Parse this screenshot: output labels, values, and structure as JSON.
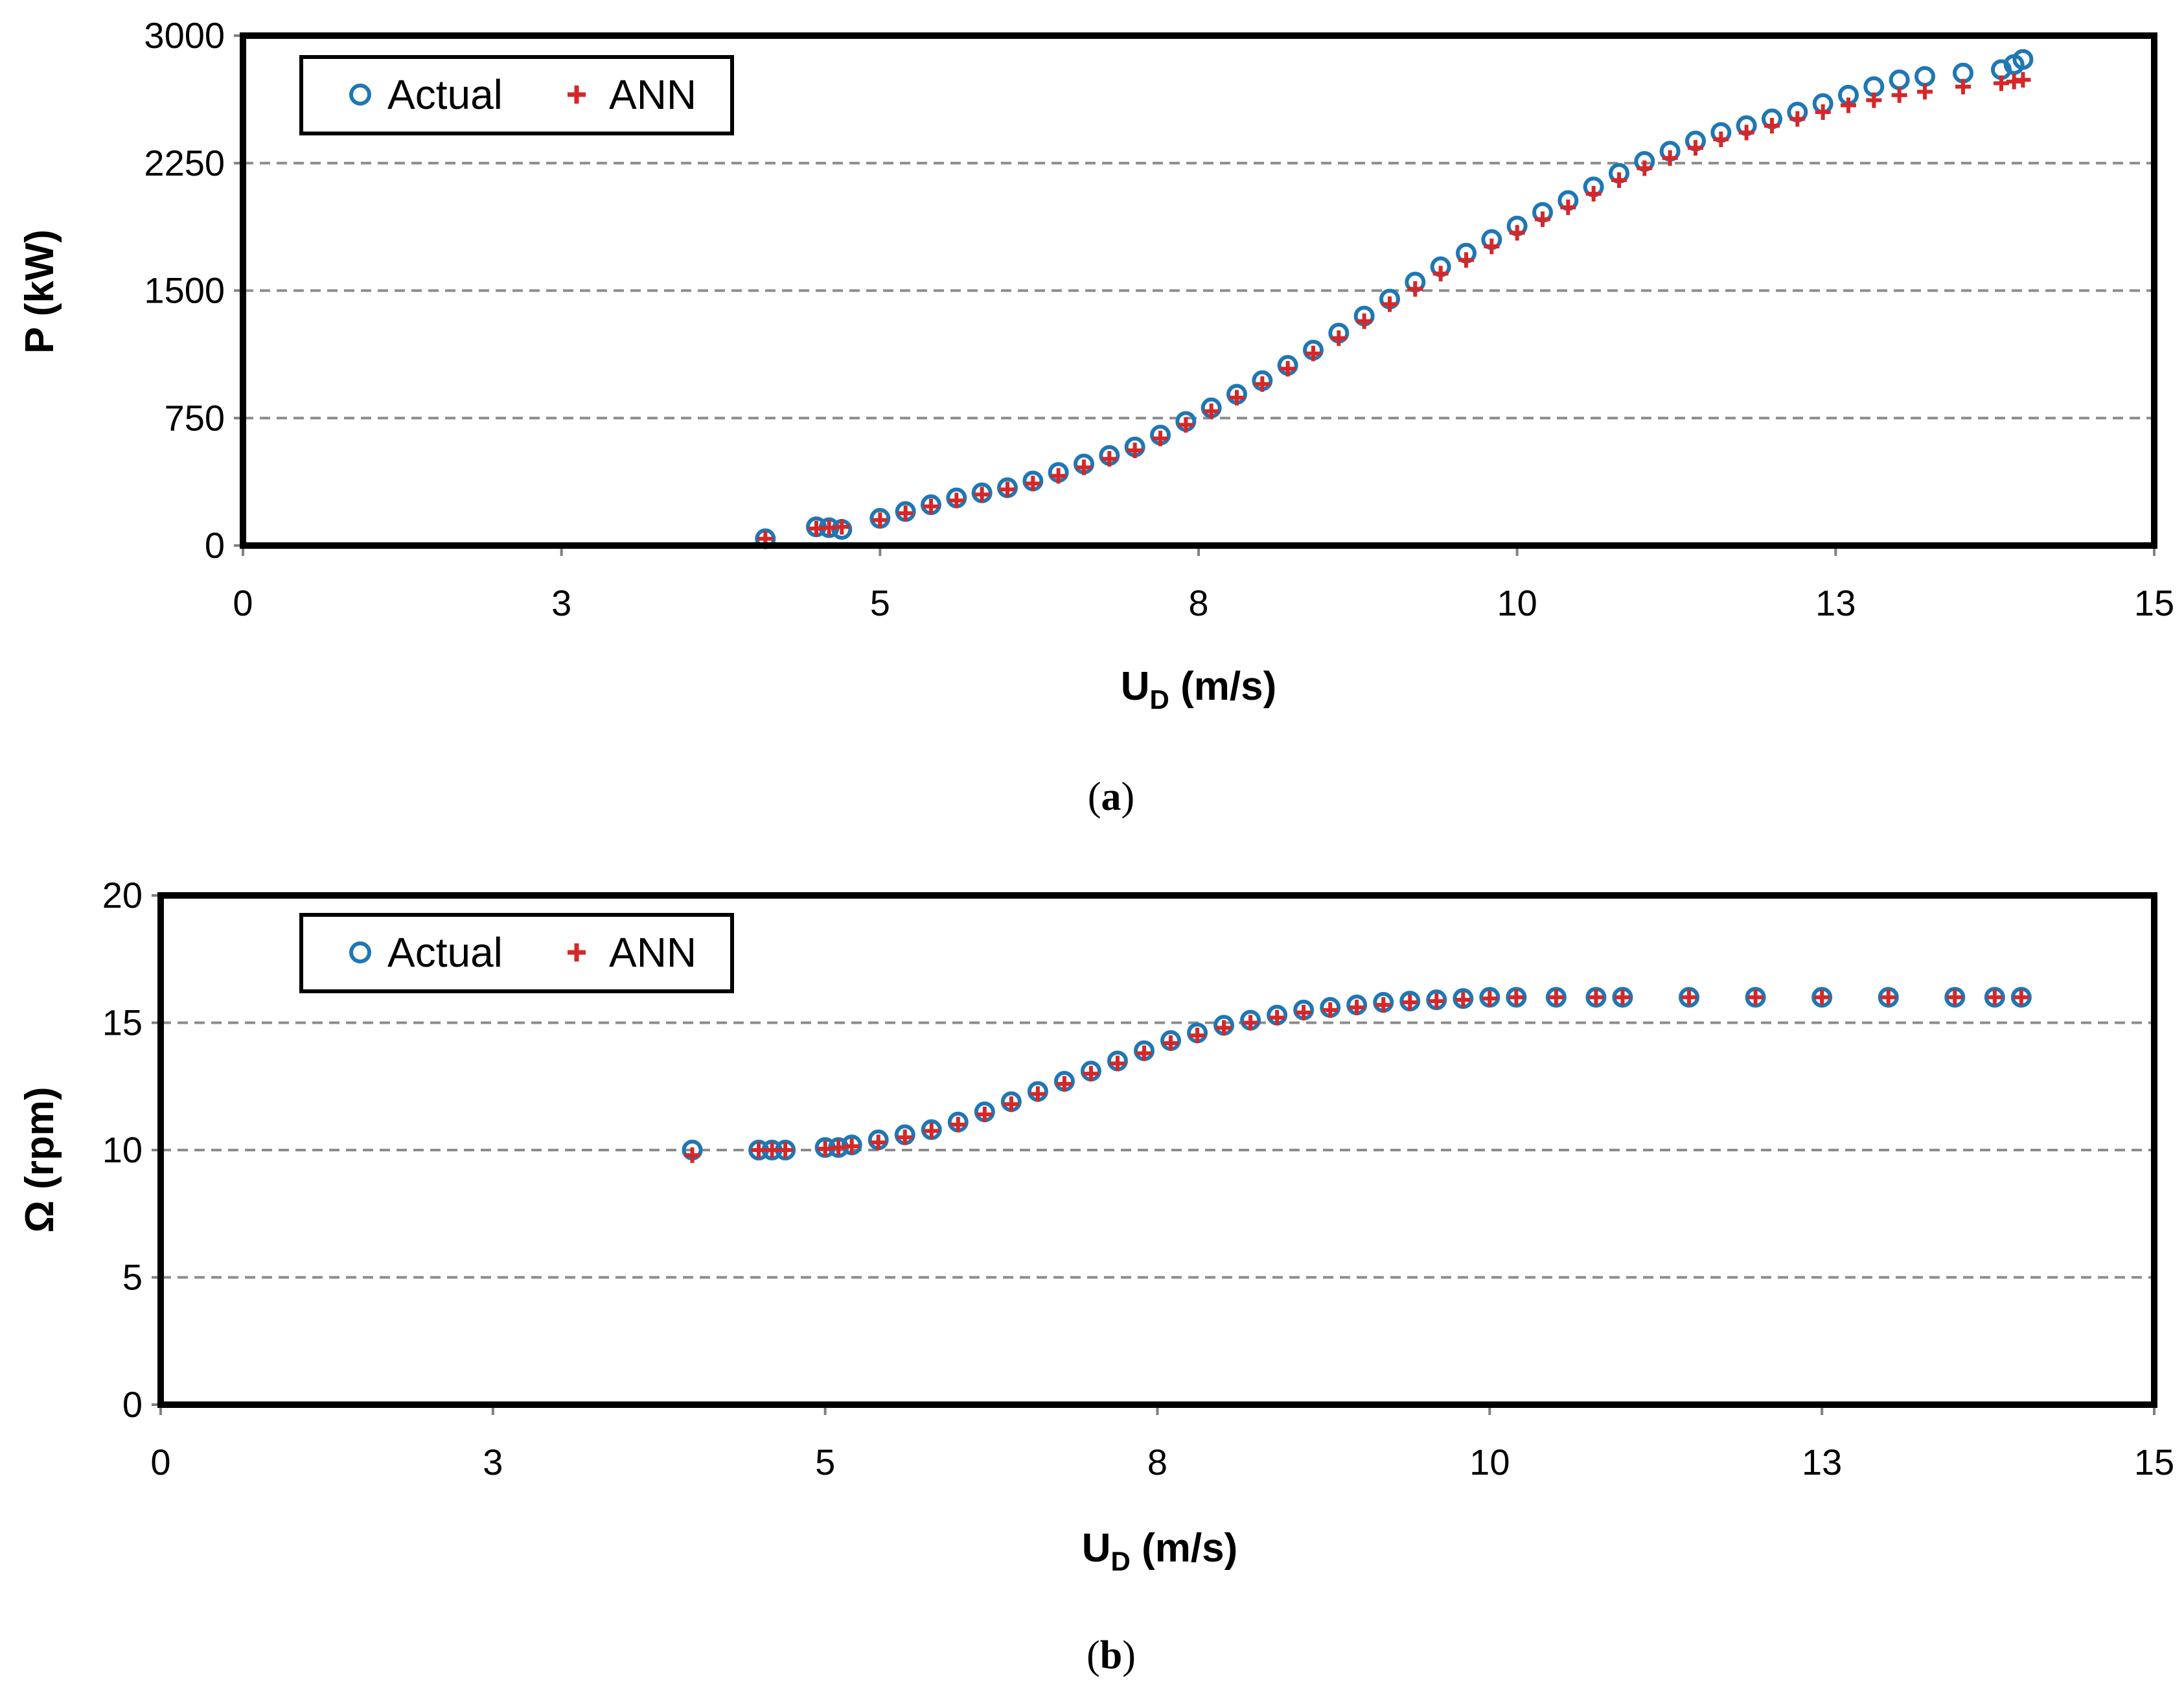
{
  "chart_data": [
    {
      "type": "scatter",
      "panel": "a",
      "caption_open": "(",
      "caption_letter": "a",
      "caption_close": ")",
      "xlabel_main": "U",
      "xlabel_sub": "D",
      "xlabel_units": " (m/s)",
      "ylabel": "P (kW)",
      "xlim": [
        0,
        15
      ],
      "ylim": [
        0,
        3000
      ],
      "xticks": [
        0,
        2.5,
        5,
        7.5,
        10,
        12.5,
        15
      ],
      "xtick_labels": [
        "0",
        "3",
        "5",
        "8",
        "10",
        "13",
        "15"
      ],
      "yticks": [
        0,
        750,
        1500,
        2250,
        3000
      ],
      "ytick_labels": [
        "0",
        "750",
        "1500",
        "2250",
        "3000"
      ],
      "grid": "horizontal-dashed",
      "legend": "top-left",
      "series": [
        {
          "name": "Actual",
          "marker": "circle",
          "color": "#1f77b4",
          "x": [
            4.1,
            4.5,
            4.6,
            4.7,
            5.0,
            5.2,
            5.4,
            5.6,
            5.8,
            6.0,
            6.2,
            6.4,
            6.6,
            6.8,
            7.0,
            7.2,
            7.4,
            7.6,
            7.8,
            8.0,
            8.2,
            8.4,
            8.6,
            8.8,
            9.0,
            9.2,
            9.4,
            9.6,
            9.8,
            10.0,
            10.2,
            10.4,
            10.6,
            10.8,
            11.0,
            11.2,
            11.4,
            11.6,
            11.8,
            12.0,
            12.2,
            12.4,
            12.6,
            12.8,
            13.0,
            13.2,
            13.5,
            13.8,
            13.9,
            13.97
          ],
          "y": [
            40,
            110,
            105,
            95,
            160,
            200,
            240,
            280,
            310,
            340,
            380,
            430,
            480,
            530,
            580,
            650,
            730,
            810,
            890,
            970,
            1060,
            1150,
            1250,
            1350,
            1450,
            1550,
            1640,
            1720,
            1800,
            1880,
            1960,
            2030,
            2110,
            2190,
            2260,
            2320,
            2380,
            2430,
            2470,
            2510,
            2550,
            2600,
            2650,
            2700,
            2740,
            2760,
            2780,
            2800,
            2830,
            2860
          ]
        },
        {
          "name": "ANN",
          "marker": "plus",
          "color": "#d62728",
          "x": [
            4.1,
            4.5,
            4.6,
            4.7,
            5.0,
            5.2,
            5.4,
            5.6,
            5.8,
            6.0,
            6.2,
            6.4,
            6.6,
            6.8,
            7.0,
            7.2,
            7.4,
            7.6,
            7.8,
            8.0,
            8.2,
            8.4,
            8.6,
            8.8,
            9.0,
            9.2,
            9.4,
            9.6,
            9.8,
            10.0,
            10.2,
            10.4,
            10.6,
            10.8,
            11.0,
            11.2,
            11.4,
            11.6,
            11.8,
            12.0,
            12.2,
            12.4,
            12.6,
            12.8,
            13.0,
            13.2,
            13.5,
            13.8,
            13.9,
            13.97
          ],
          "y": [
            40,
            100,
            105,
            110,
            150,
            190,
            230,
            265,
            300,
            330,
            365,
            410,
            460,
            510,
            560,
            630,
            710,
            790,
            870,
            950,
            1040,
            1130,
            1220,
            1320,
            1420,
            1510,
            1600,
            1680,
            1760,
            1840,
            1920,
            1990,
            2070,
            2150,
            2220,
            2280,
            2340,
            2390,
            2430,
            2470,
            2510,
            2550,
            2590,
            2620,
            2650,
            2670,
            2700,
            2720,
            2730,
            2740
          ]
        }
      ]
    },
    {
      "type": "scatter",
      "panel": "b",
      "caption_open": "(",
      "caption_letter": "b",
      "caption_close": ")",
      "xlabel_main": "U",
      "xlabel_sub": "D",
      "xlabel_units": " (m/s)",
      "ylabel": "Ω (rpm)",
      "xlim": [
        0,
        15
      ],
      "ylim": [
        0,
        20
      ],
      "xticks": [
        0,
        2.5,
        5,
        7.5,
        10,
        12.5,
        15
      ],
      "xtick_labels": [
        "0",
        "3",
        "5",
        "8",
        "10",
        "13",
        "15"
      ],
      "yticks": [
        0,
        5,
        10,
        15,
        20
      ],
      "ytick_labels": [
        "0",
        "5",
        "10",
        "15",
        "20"
      ],
      "grid": "horizontal-dashed",
      "legend": "top-left",
      "series": [
        {
          "name": "Actual",
          "marker": "circle",
          "color": "#1f77b4",
          "x": [
            4.0,
            4.5,
            4.6,
            4.7,
            5.0,
            5.1,
            5.2,
            5.4,
            5.6,
            5.8,
            6.0,
            6.2,
            6.4,
            6.6,
            6.8,
            7.0,
            7.2,
            7.4,
            7.6,
            7.8,
            8.0,
            8.2,
            8.4,
            8.6,
            8.8,
            9.0,
            9.2,
            9.4,
            9.6,
            9.8,
            10.0,
            10.2,
            10.5,
            10.8,
            11.0,
            11.5,
            12.0,
            12.5,
            13.0,
            13.5,
            13.8,
            14.0
          ],
          "y": [
            10.0,
            10.0,
            10.0,
            10.0,
            10.1,
            10.1,
            10.2,
            10.4,
            10.6,
            10.8,
            11.1,
            11.5,
            11.9,
            12.3,
            12.7,
            13.1,
            13.5,
            13.9,
            14.3,
            14.6,
            14.9,
            15.1,
            15.3,
            15.5,
            15.6,
            15.7,
            15.8,
            15.85,
            15.9,
            15.95,
            16.0,
            16.0,
            16.0,
            16.0,
            16.0,
            16.0,
            16.0,
            16.0,
            16.0,
            16.0,
            16.0,
            16.0
          ]
        },
        {
          "name": "ANN",
          "marker": "plus",
          "color": "#d62728",
          "x": [
            4.0,
            4.5,
            4.6,
            4.7,
            5.0,
            5.1,
            5.2,
            5.4,
            5.6,
            5.8,
            6.0,
            6.2,
            6.4,
            6.6,
            6.8,
            7.0,
            7.2,
            7.4,
            7.6,
            7.8,
            8.0,
            8.2,
            8.4,
            8.6,
            8.8,
            9.0,
            9.2,
            9.4,
            9.6,
            9.8,
            10.0,
            10.2,
            10.5,
            10.8,
            11.0,
            11.5,
            12.0,
            12.5,
            13.0,
            13.5,
            13.8,
            14.0
          ],
          "y": [
            9.8,
            10.0,
            10.0,
            10.0,
            10.05,
            10.1,
            10.15,
            10.3,
            10.5,
            10.75,
            11.0,
            11.4,
            11.8,
            12.2,
            12.6,
            13.0,
            13.4,
            13.8,
            14.2,
            14.5,
            14.8,
            15.0,
            15.2,
            15.4,
            15.5,
            15.6,
            15.7,
            15.8,
            15.85,
            15.9,
            15.95,
            16.0,
            16.0,
            16.0,
            16.0,
            16.0,
            16.0,
            16.0,
            16.0,
            16.0,
            16.0,
            16.0
          ]
        }
      ]
    }
  ]
}
